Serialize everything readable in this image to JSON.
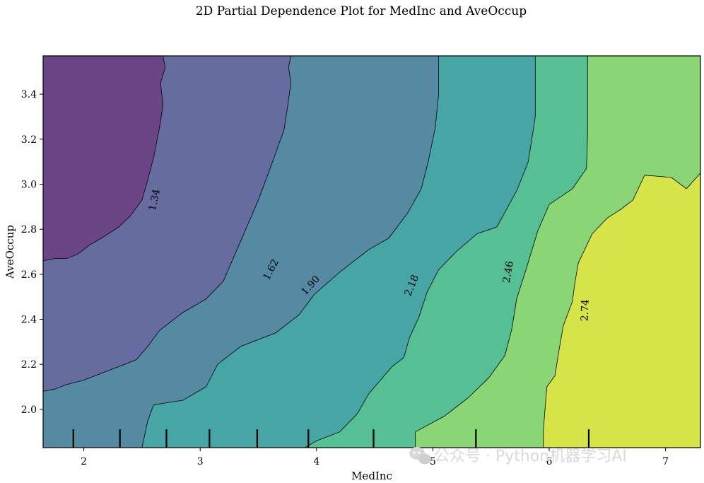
{
  "chart_data": {
    "type": "contour",
    "title": "2D Partial Dependence Plot for MedInc and AveOccup",
    "xlabel": "MedInc",
    "ylabel": "AveOccup",
    "xlim": [
      1.65,
      7.3
    ],
    "ylim": [
      1.83,
      3.57
    ],
    "x_ticks": [
      2,
      3,
      4,
      5,
      6,
      7
    ],
    "y_ticks": [
      2.0,
      2.2,
      2.4,
      2.6,
      2.8,
      3.0,
      3.2,
      3.4
    ],
    "contour_levels": [
      1.34,
      1.62,
      1.9,
      2.18,
      2.46,
      2.74
    ],
    "contour_labels": [
      {
        "text": "1.34",
        "x": 2.61,
        "y": 2.93,
        "angle": -78
      },
      {
        "text": "1.62",
        "x": 3.61,
        "y": 2.62,
        "angle": -62
      },
      {
        "text": "1.90",
        "x": 3.95,
        "y": 2.55,
        "angle": -48
      },
      {
        "text": "2.18",
        "x": 4.82,
        "y": 2.55,
        "angle": -68
      },
      {
        "text": "2.46",
        "x": 5.65,
        "y": 2.61,
        "angle": -80
      },
      {
        "text": "2.74",
        "x": 6.31,
        "y": 2.44,
        "angle": -88
      }
    ],
    "region_colors": [
      "#6c4586",
      "#666c9f",
      "#568aa3",
      "#48a5a5",
      "#56bf93",
      "#8ad575",
      "#d6e44a"
    ],
    "boundaries": [
      {
        "level": 1.34,
        "points": [
          [
            1.65,
            2.66
          ],
          [
            1.75,
            2.67
          ],
          [
            1.85,
            2.67
          ],
          [
            1.95,
            2.69
          ],
          [
            2.05,
            2.73
          ],
          [
            2.15,
            2.76
          ],
          [
            2.3,
            2.81
          ],
          [
            2.4,
            2.86
          ],
          [
            2.5,
            2.93
          ],
          [
            2.55,
            3.02
          ],
          [
            2.6,
            3.12
          ],
          [
            2.65,
            3.25
          ],
          [
            2.68,
            3.35
          ],
          [
            2.66,
            3.45
          ],
          [
            2.7,
            3.52
          ],
          [
            2.68,
            3.57
          ]
        ]
      },
      {
        "level": 1.62,
        "points": [
          [
            1.65,
            2.08
          ],
          [
            1.75,
            2.09
          ],
          [
            1.85,
            2.11
          ],
          [
            2.0,
            2.13
          ],
          [
            2.2,
            2.17
          ],
          [
            2.45,
            2.22
          ],
          [
            2.55,
            2.28
          ],
          [
            2.65,
            2.35
          ],
          [
            2.75,
            2.39
          ],
          [
            2.85,
            2.43
          ],
          [
            3.05,
            2.49
          ],
          [
            3.2,
            2.57
          ],
          [
            3.3,
            2.69
          ],
          [
            3.4,
            2.81
          ],
          [
            3.5,
            2.93
          ],
          [
            3.58,
            3.04
          ],
          [
            3.65,
            3.14
          ],
          [
            3.72,
            3.24
          ],
          [
            3.75,
            3.34
          ],
          [
            3.78,
            3.45
          ],
          [
            3.76,
            3.52
          ],
          [
            3.78,
            3.57
          ]
        ]
      },
      {
        "level": 1.9,
        "points": [
          [
            2.5,
            1.83
          ],
          [
            2.55,
            1.95
          ],
          [
            2.6,
            2.02
          ],
          [
            2.85,
            2.04
          ],
          [
            3.05,
            2.1
          ],
          [
            3.15,
            2.2
          ],
          [
            3.35,
            2.28
          ],
          [
            3.65,
            2.34
          ],
          [
            3.85,
            2.42
          ],
          [
            3.98,
            2.51
          ],
          [
            4.2,
            2.61
          ],
          [
            4.45,
            2.71
          ],
          [
            4.62,
            2.76
          ],
          [
            4.78,
            2.87
          ],
          [
            4.9,
            2.98
          ],
          [
            4.96,
            3.1
          ],
          [
            5.02,
            3.25
          ],
          [
            5.05,
            3.4
          ],
          [
            5.05,
            3.57
          ]
        ]
      },
      {
        "level": 2.18,
        "points": [
          [
            3.9,
            1.83
          ],
          [
            4.0,
            1.86
          ],
          [
            4.2,
            1.9
          ],
          [
            4.35,
            1.98
          ],
          [
            4.45,
            2.07
          ],
          [
            4.55,
            2.13
          ],
          [
            4.65,
            2.19
          ],
          [
            4.75,
            2.23
          ],
          [
            4.8,
            2.32
          ],
          [
            4.88,
            2.41
          ],
          [
            4.95,
            2.52
          ],
          [
            5.05,
            2.62
          ],
          [
            5.2,
            2.7
          ],
          [
            5.38,
            2.78
          ],
          [
            5.55,
            2.81
          ],
          [
            5.72,
            2.97
          ],
          [
            5.82,
            3.1
          ],
          [
            5.88,
            3.3
          ],
          [
            5.88,
            3.57
          ]
        ]
      },
      {
        "level": 2.46,
        "points": [
          [
            4.85,
            1.83
          ],
          [
            4.85,
            1.9
          ],
          [
            5.1,
            1.97
          ],
          [
            5.3,
            2.05
          ],
          [
            5.48,
            2.14
          ],
          [
            5.62,
            2.24
          ],
          [
            5.68,
            2.36
          ],
          [
            5.72,
            2.49
          ],
          [
            5.8,
            2.62
          ],
          [
            5.9,
            2.79
          ],
          [
            6.0,
            2.91
          ],
          [
            6.2,
            2.98
          ],
          [
            6.32,
            3.07
          ],
          [
            6.33,
            3.22
          ],
          [
            6.33,
            3.57
          ]
        ]
      },
      {
        "level": 2.74,
        "points": [
          [
            5.95,
            1.83
          ],
          [
            5.95,
            1.91
          ],
          [
            5.97,
            2.04
          ],
          [
            5.98,
            2.1
          ],
          [
            6.05,
            2.15
          ],
          [
            6.08,
            2.25
          ],
          [
            6.12,
            2.37
          ],
          [
            6.2,
            2.48
          ],
          [
            6.22,
            2.56
          ],
          [
            6.25,
            2.65
          ],
          [
            6.37,
            2.78
          ],
          [
            6.5,
            2.85
          ],
          [
            6.62,
            2.89
          ],
          [
            6.72,
            2.93
          ],
          [
            6.82,
            3.04
          ],
          [
            7.05,
            3.03
          ],
          [
            7.18,
            2.98
          ],
          [
            7.3,
            3.05
          ]
        ]
      }
    ],
    "rug_x": [
      1.91,
      2.31,
      2.71,
      3.08,
      3.49,
      3.93,
      4.49,
      5.37,
      6.34
    ]
  },
  "watermark": "公众号 · Python机器学习AI"
}
